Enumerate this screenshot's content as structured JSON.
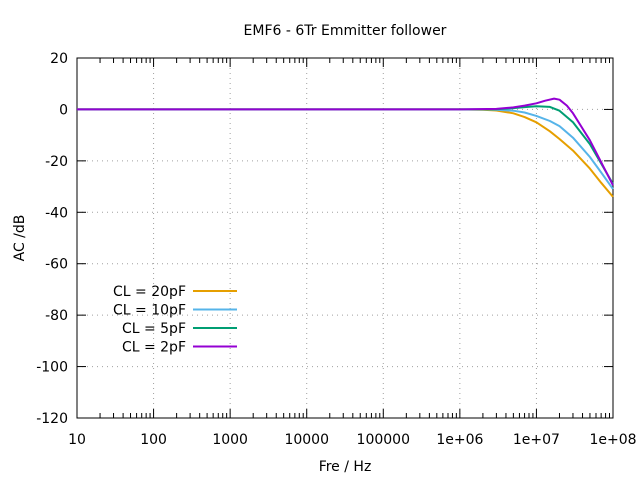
{
  "chart_data": {
    "type": "line",
    "title": "EMF6 - 6Tr Emmitter follower",
    "xlabel": "Fre / Hz",
    "ylabel": "AC /dB",
    "xscale": "log",
    "xlim": [
      10,
      100000000
    ],
    "ylim": [
      -120,
      20
    ],
    "grid": true,
    "legend_position": "lower-left",
    "x_tick_labels": [
      "10",
      "100",
      "1000",
      "10000",
      "100000",
      "1e+06",
      "1e+07",
      "1e+08"
    ],
    "y_tick_labels": [
      "20",
      "0",
      "-20",
      "-40",
      "-60",
      "-80",
      "-100",
      "-120"
    ],
    "series": [
      {
        "name": "CL = 20pF",
        "color": "#e69f00",
        "x": [
          10,
          100000,
          1000000,
          2000000,
          3000000,
          5000000,
          7000000,
          10000000,
          15000000,
          20000000,
          30000000,
          50000000,
          70000000,
          100000000
        ],
        "y": [
          0,
          0,
          0,
          -0.1,
          -0.4,
          -1.5,
          -3.0,
          -5.0,
          -8.5,
          -11.5,
          -16.0,
          -23.0,
          -28.5,
          -34.0
        ]
      },
      {
        "name": "CL = 10pF",
        "color": "#56b4e9",
        "x": [
          10,
          100000,
          1000000,
          2000000,
          3000000,
          5000000,
          7000000,
          10000000,
          15000000,
          20000000,
          30000000,
          50000000,
          70000000,
          100000000
        ],
        "y": [
          0,
          0,
          0,
          0,
          -0.1,
          -0.5,
          -1.2,
          -2.5,
          -4.5,
          -6.5,
          -11.0,
          -18.5,
          -24.5,
          -31.0
        ]
      },
      {
        "name": "CL = 5pF",
        "color": "#009e73",
        "x": [
          10,
          100000,
          1000000,
          3000000,
          5000000,
          7000000,
          10000000,
          15000000,
          20000000,
          30000000,
          50000000,
          70000000,
          100000000
        ],
        "y": [
          0,
          0,
          0,
          0.1,
          0.5,
          0.9,
          1.2,
          1.0,
          -0.5,
          -5.0,
          -13.5,
          -21.0,
          -29.0
        ]
      },
      {
        "name": "CL = 2pF",
        "color": "#9400d3",
        "x": [
          10,
          100000,
          1000000,
          3000000,
          5000000,
          7000000,
          10000000,
          13000000,
          17000000,
          20000000,
          25000000,
          30000000,
          50000000,
          70000000,
          100000000
        ],
        "y": [
          0,
          0,
          0,
          0.2,
          0.8,
          1.5,
          2.4,
          3.4,
          4.2,
          3.8,
          1.5,
          -1.5,
          -12.0,
          -20.5,
          -29.5
        ]
      }
    ]
  }
}
